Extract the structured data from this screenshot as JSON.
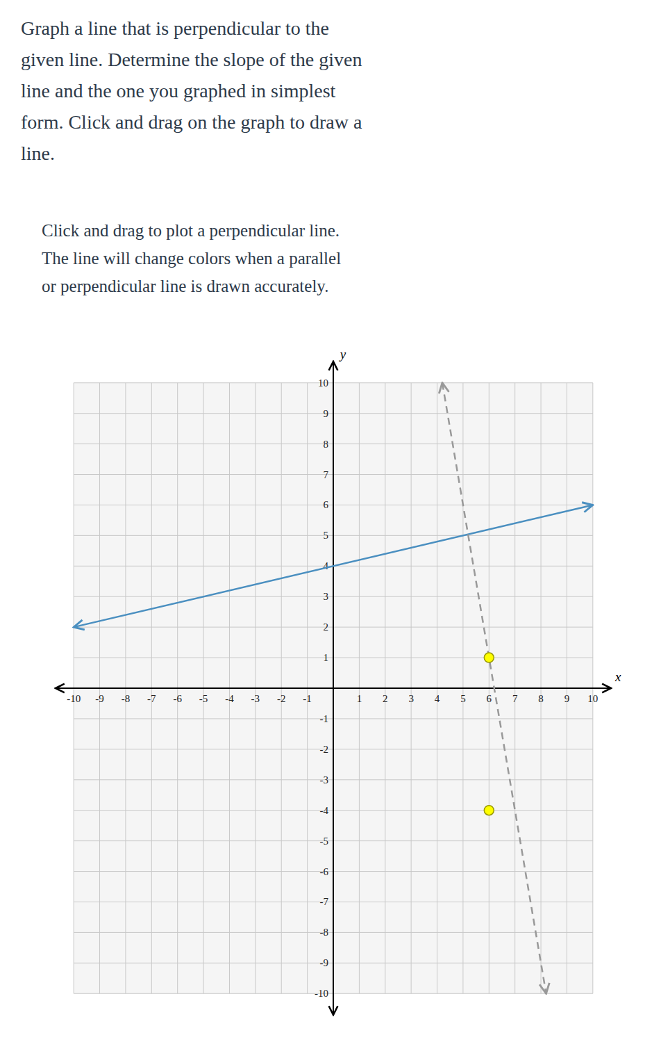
{
  "chart_data": {
    "type": "line",
    "title": "Graph a line that is perpendicular to the\ngiven line. Determine the slope of the given\nline and the one you graphed in simplest\nform. Click and drag on the graph to draw a\nline.",
    "subtitle": "Click and drag to plot a perpendicular line.\nThe line will change colors when a parallel\nor perpendicular line is drawn accurately.",
    "xlabel": "x",
    "ylabel": "y",
    "xlim": [
      -10.7,
      10.7
    ],
    "ylim": [
      -10.7,
      10.7
    ],
    "xticks": [
      -10,
      -9,
      -8,
      -7,
      -6,
      -5,
      -4,
      -3,
      -2,
      -1,
      1,
      2,
      3,
      4,
      5,
      6,
      7,
      8,
      9,
      10
    ],
    "yticks": [
      -10,
      -9,
      -8,
      -7,
      -6,
      -5,
      -4,
      -3,
      -2,
      -1,
      1,
      2,
      3,
      4,
      5,
      6,
      7,
      8,
      9,
      10
    ],
    "grid": true,
    "series": [
      {
        "type": "line",
        "color": "#4a8fc0",
        "line_style": "solid",
        "marker": "arrow",
        "x": [
          -10.0,
          10.0
        ],
        "values": [
          2.0,
          6.0
        ]
      },
      {
        "type": "line",
        "color": "#999999",
        "line_style": "dashed",
        "marker": "arrow",
        "x": [
          4.2,
          8.2
        ],
        "values": [
          10.0,
          -10.0
        ]
      },
      {
        "type": "scatter",
        "color": "#ffff00",
        "marker": "circle",
        "x": [
          6,
          6
        ],
        "values": [
          1,
          -4
        ]
      }
    ]
  }
}
